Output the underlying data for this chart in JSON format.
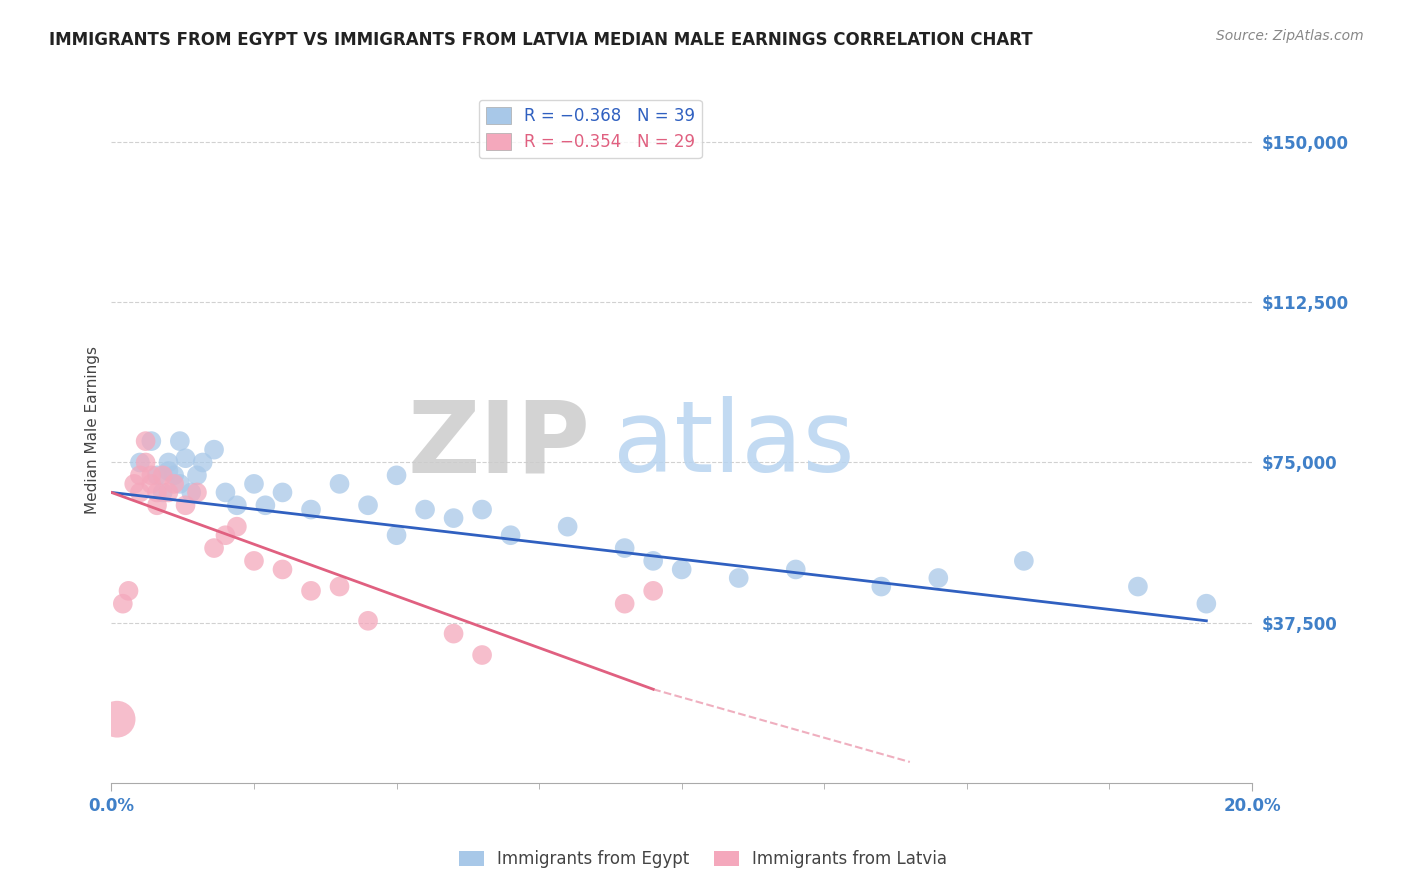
{
  "title": "IMMIGRANTS FROM EGYPT VS IMMIGRANTS FROM LATVIA MEDIAN MALE EARNINGS CORRELATION CHART",
  "source_text": "Source: ZipAtlas.com",
  "ylabel": "Median Male Earnings",
  "xlim": [
    0.0,
    0.2
  ],
  "ylim": [
    0,
    165000
  ],
  "yticks": [
    37500,
    75000,
    112500,
    150000
  ],
  "ytick_labels": [
    "$37,500",
    "$75,000",
    "$112,500",
    "$150,000"
  ],
  "watermark_zip": "ZIP",
  "watermark_atlas": "atlas",
  "legend_egypt": "R = −0.368   N = 39",
  "legend_latvia": "R = −0.354   N = 29",
  "egypt_color": "#a8c8e8",
  "latvia_color": "#f4a8bc",
  "egypt_line_color": "#3060c0",
  "latvia_line_color": "#e06080",
  "egypt_scatter": {
    "x": [
      0.005,
      0.007,
      0.008,
      0.009,
      0.01,
      0.01,
      0.011,
      0.012,
      0.012,
      0.013,
      0.014,
      0.015,
      0.016,
      0.018,
      0.02,
      0.022,
      0.025,
      0.027,
      0.03,
      0.035,
      0.04,
      0.045,
      0.05,
      0.055,
      0.06,
      0.065,
      0.09,
      0.095,
      0.1,
      0.11,
      0.12,
      0.135,
      0.145,
      0.16,
      0.18,
      0.192,
      0.05,
      0.07,
      0.08
    ],
    "y": [
      75000,
      80000,
      72000,
      68000,
      75000,
      73000,
      72000,
      70000,
      80000,
      76000,
      68000,
      72000,
      75000,
      78000,
      68000,
      65000,
      70000,
      65000,
      68000,
      64000,
      70000,
      65000,
      72000,
      64000,
      62000,
      64000,
      55000,
      52000,
      50000,
      48000,
      50000,
      46000,
      48000,
      52000,
      46000,
      42000,
      58000,
      58000,
      60000
    ],
    "size": [
      200,
      200,
      200,
      200,
      200,
      200,
      200,
      200,
      200,
      200,
      200,
      200,
      200,
      200,
      200,
      200,
      200,
      200,
      200,
      200,
      200,
      200,
      200,
      200,
      200,
      200,
      200,
      200,
      200,
      200,
      200,
      200,
      200,
      200,
      200,
      200,
      200,
      200,
      200
    ]
  },
  "latvia_scatter": {
    "x": [
      0.001,
      0.002,
      0.003,
      0.004,
      0.005,
      0.005,
      0.006,
      0.006,
      0.007,
      0.007,
      0.008,
      0.008,
      0.009,
      0.01,
      0.011,
      0.013,
      0.015,
      0.018,
      0.02,
      0.022,
      0.025,
      0.03,
      0.035,
      0.04,
      0.045,
      0.06,
      0.065,
      0.09,
      0.095
    ],
    "y": [
      15000,
      42000,
      45000,
      70000,
      72000,
      68000,
      75000,
      80000,
      70000,
      72000,
      65000,
      68000,
      72000,
      68000,
      70000,
      65000,
      68000,
      55000,
      58000,
      60000,
      52000,
      50000,
      45000,
      46000,
      38000,
      35000,
      30000,
      42000,
      45000
    ],
    "size": [
      700,
      200,
      200,
      200,
      200,
      200,
      200,
      200,
      200,
      200,
      200,
      200,
      200,
      200,
      200,
      200,
      200,
      200,
      200,
      200,
      200,
      200,
      200,
      200,
      200,
      200,
      200,
      200,
      200
    ]
  },
  "egypt_trend": {
    "x": [
      0.0,
      0.192
    ],
    "y": [
      68000,
      38000
    ]
  },
  "latvia_trend": {
    "x": [
      0.0,
      0.095
    ],
    "y": [
      68000,
      22000
    ]
  },
  "latvia_trend_ext": {
    "x": [
      0.095,
      0.14
    ],
    "y": [
      22000,
      5000
    ]
  },
  "grid_color": "#cccccc",
  "background_color": "#ffffff",
  "title_color": "#222222",
  "ytick_color": "#4080c8",
  "xtick_color": "#4080c8"
}
